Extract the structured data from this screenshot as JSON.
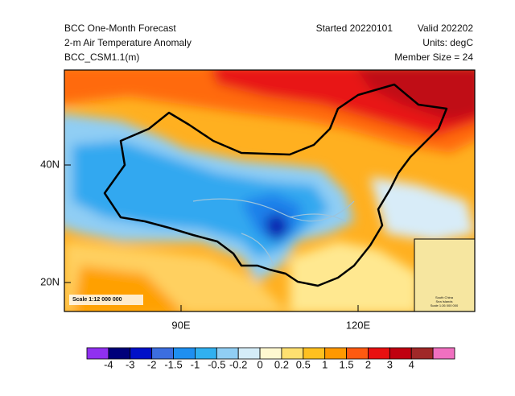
{
  "header": {
    "left": [
      "BCC One-Month Forecast",
      "2-m Air Temperature Anomaly",
      "BCC_CSM1.1(m)"
    ],
    "started": "Started 20220101",
    "valid": "Valid 202202",
    "units": "Units: degC",
    "member_size": "Member Size = 24"
  },
  "map": {
    "lat_labels": [
      "40N",
      "20N"
    ],
    "lon_labels": [
      "90E",
      "120E"
    ],
    "scale": "Scale 1:12 000 000",
    "inset_text": [
      "South China",
      "Sea Islands",
      "Scale 1:26 000 000"
    ]
  },
  "colorbar": {
    "colors": [
      "#9030f0",
      "#00007a",
      "#0010c8",
      "#3c6ee0",
      "#1e8ff0",
      "#30b0f0",
      "#90cef4",
      "#d4ecf8",
      "#fff8d0",
      "#ffe070",
      "#ffc020",
      "#ff9800",
      "#ff5a10",
      "#e81010",
      "#c00010",
      "#a02828",
      "#f070c0"
    ],
    "labels": [
      -4,
      -3,
      -2,
      -1.5,
      -1,
      -0.5,
      -0.2,
      0,
      0.2,
      0.5,
      1,
      1.5,
      2,
      3,
      4
    ]
  }
}
